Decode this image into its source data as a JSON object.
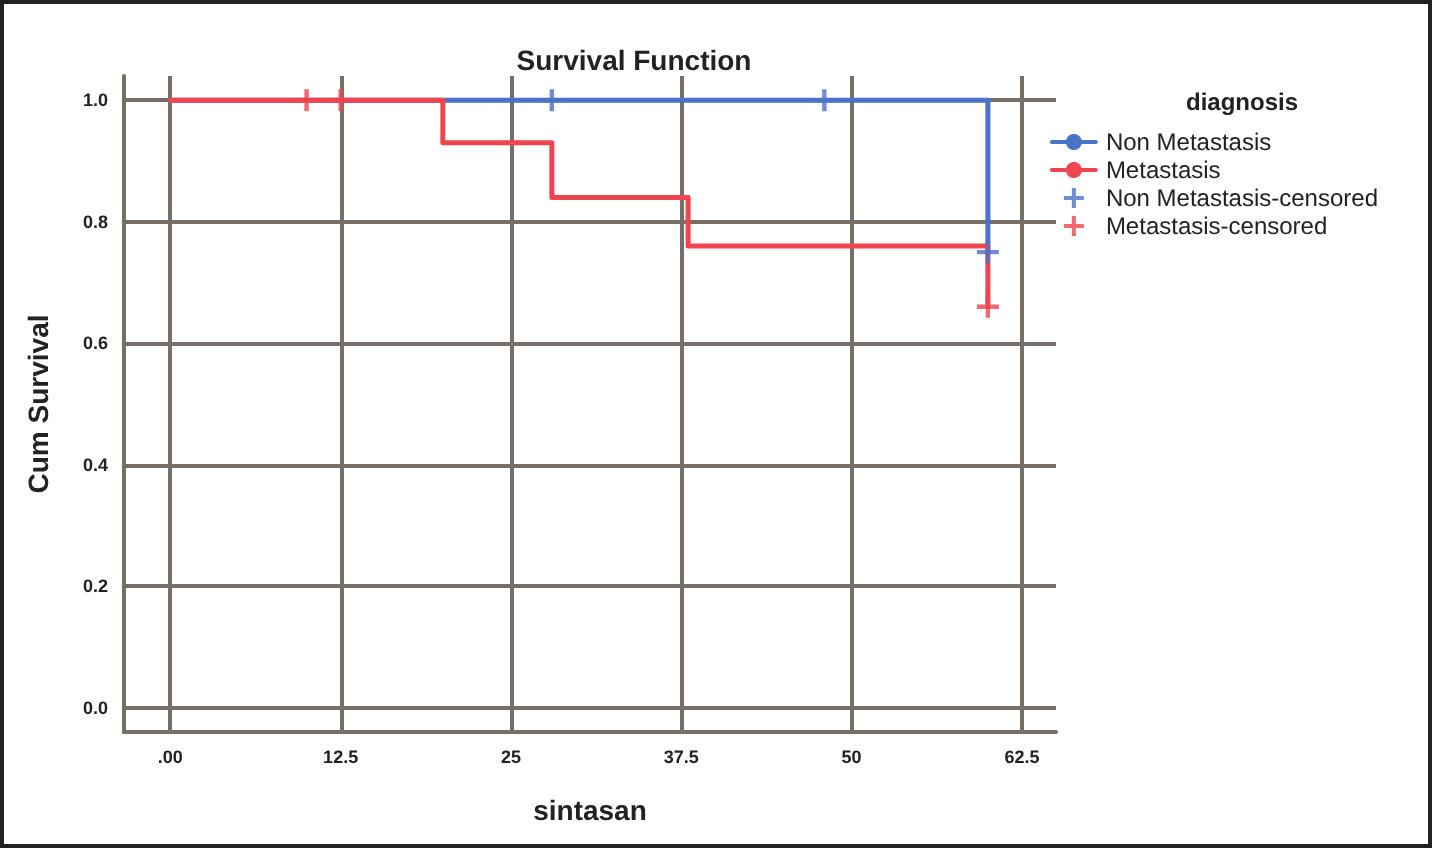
{
  "chart_data": {
    "type": "step",
    "title": "Survival Function",
    "xlabel": "sintasan",
    "ylabel": "Cum Survival",
    "legend_title": "diagnosis",
    "series": [
      {
        "name": "Non Metastasis",
        "color": "#4a72c8",
        "x": [
          0,
          60,
          60
        ],
        "values": [
          1,
          1,
          0.75
        ]
      },
      {
        "name": "Metastasis",
        "color": "#f0444e",
        "x": [
          0,
          20,
          28,
          38,
          60,
          60
        ],
        "values": [
          1,
          0.93,
          0.84,
          0.76,
          0.76,
          0.66
        ]
      },
      {
        "name": "Non Metastasis-censored",
        "type": "scatter",
        "marker": "cross",
        "color": "#4a72c8",
        "x": [
          28,
          48,
          60
        ],
        "values": [
          1,
          1,
          0.75
        ]
      },
      {
        "name": "Metastasis-censored",
        "type": "scatter",
        "marker": "cross",
        "color": "#f0444e",
        "x": [
          10,
          12.5,
          60
        ],
        "values": [
          1,
          1,
          0.66
        ]
      }
    ],
    "xlim": [
      -3.4,
      65
    ],
    "xticks": [
      {
        "value": 0,
        "label": ".00"
      },
      12.5,
      25,
      37.5,
      50,
      62.5
    ],
    "ylim": [
      -0.04,
      1.04
    ],
    "yticks": [
      {
        "value": 0,
        "label": "0.0"
      },
      {
        "value": 0.2,
        "label": "0.2"
      },
      {
        "value": 0.4,
        "label": "0.4"
      },
      {
        "value": 0.6,
        "label": "0.6"
      },
      {
        "value": 0.8,
        "label": "0.8"
      },
      {
        "value": 1,
        "label": "1.0"
      }
    ],
    "grid": true,
    "legend": "right",
    "marker": "none",
    "line_style": "solid"
  }
}
